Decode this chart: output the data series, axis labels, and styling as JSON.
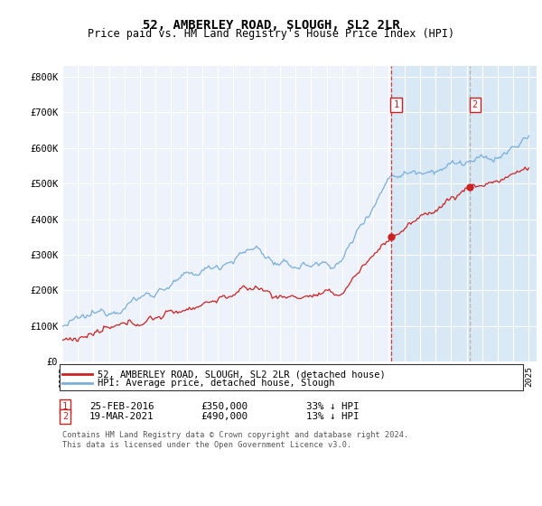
{
  "title": "52, AMBERLEY ROAD, SLOUGH, SL2 2LR",
  "subtitle": "Price paid vs. HM Land Registry's House Price Index (HPI)",
  "title_fontsize": 10,
  "subtitle_fontsize": 8.5,
  "ylim": [
    0,
    830000
  ],
  "xlim_start": 1995.0,
  "xlim_end": 2025.5,
  "yticks": [
    0,
    100000,
    200000,
    300000,
    400000,
    500000,
    600000,
    700000,
    800000
  ],
  "ytick_labels": [
    "£0",
    "£100K",
    "£200K",
    "£300K",
    "£400K",
    "£500K",
    "£600K",
    "£700K",
    "£800K"
  ],
  "background_color": "#ffffff",
  "plot_bg_color": "#eef2fa",
  "shade_color": "#d8e8f5",
  "grid_color": "#ffffff",
  "hpi_color": "#7aaedd",
  "price_color": "#cc2222",
  "purchase1_date_x": 2016.14,
  "purchase1_price": 350000,
  "purchase2_date_x": 2021.21,
  "purchase2_price": 490000,
  "legend_label_red": "52, AMBERLEY ROAD, SLOUGH, SL2 2LR (detached house)",
  "legend_label_blue": "HPI: Average price, detached house, Slough",
  "annot1_label": "25-FEB-2016",
  "annot1_price": "£350,000",
  "annot1_pct": "33% ↓ HPI",
  "annot2_label": "19-MAR-2021",
  "annot2_price": "£490,000",
  "annot2_pct": "13% ↓ HPI",
  "footer": "Contains HM Land Registry data © Crown copyright and database right 2024.\nThis data is licensed under the Open Government Licence v3.0."
}
